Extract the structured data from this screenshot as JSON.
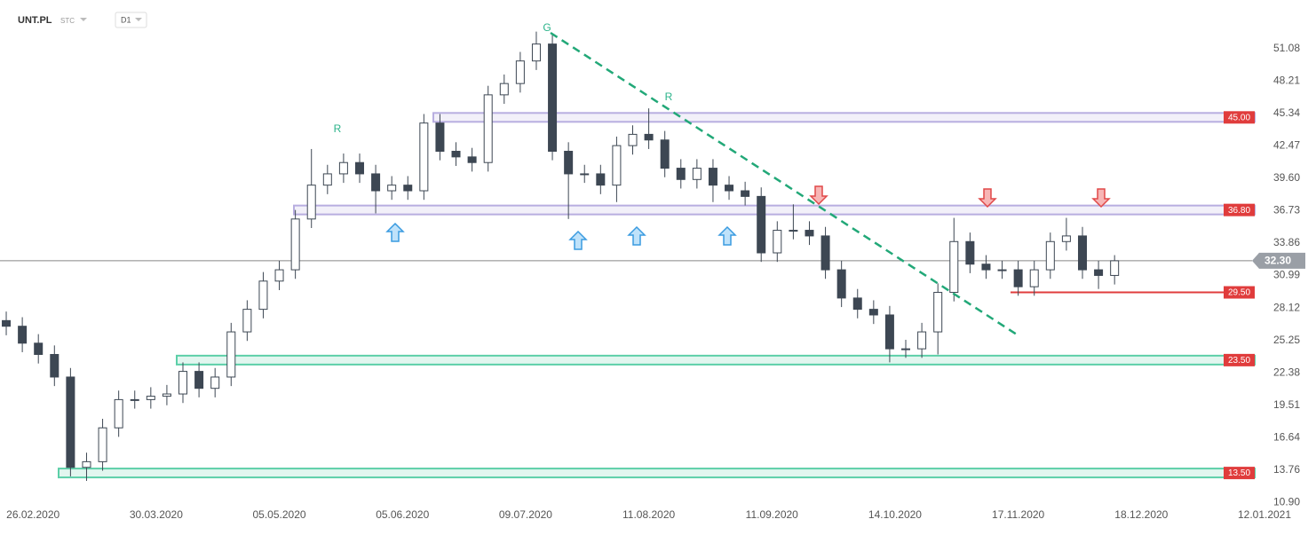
{
  "chart_data": {
    "type": "candlestick",
    "symbol": "UNT.PL",
    "source": "STC",
    "interval": "D1",
    "x": [
      0,
      3,
      6,
      9,
      12,
      15,
      18,
      21,
      24,
      27,
      30,
      33,
      36,
      39,
      42,
      45,
      48,
      51,
      54,
      57,
      60,
      63,
      66,
      69,
      72,
      75,
      78,
      81,
      84,
      87,
      90,
      93,
      96,
      99,
      102,
      105,
      108,
      111,
      114,
      117,
      120,
      123,
      126,
      129,
      132,
      135,
      138,
      141,
      144,
      147,
      150,
      153,
      156,
      159,
      162,
      165,
      168,
      171,
      174,
      177,
      180,
      183,
      186,
      189,
      192,
      195,
      198,
      201,
      204,
      207
    ],
    "open": [
      27,
      26.5,
      25,
      24,
      22,
      14,
      14.5,
      17.5,
      20,
      20,
      20.3,
      20.5,
      22.5,
      21,
      22,
      26,
      28,
      30.5,
      31.5,
      36,
      39,
      40,
      41,
      40,
      38.5,
      39,
      38.5,
      44.5,
      42,
      41.5,
      41,
      47,
      48,
      50,
      51.5,
      42,
      40,
      40,
      39,
      42.5,
      43.5,
      43,
      40.5,
      39.5,
      40.5,
      39,
      38.5,
      38,
      33,
      35,
      35,
      34.5,
      31.5,
      29,
      28,
      27.5,
      24.5,
      24.5,
      26,
      29.5,
      34,
      32,
      31.5,
      31.5,
      30,
      31.5,
      34,
      34.5,
      31.5,
      31
    ],
    "high": [
      27.8,
      27.3,
      25.8,
      24.8,
      22.8,
      15.3,
      18.3,
      20.8,
      20.8,
      21.1,
      21.3,
      23.3,
      23.3,
      22.8,
      26.8,
      28.8,
      31.3,
      32.3,
      36.8,
      42.2,
      40.8,
      41.8,
      41.8,
      40.8,
      39.8,
      39.8,
      45.3,
      45.3,
      42.8,
      42.3,
      47.8,
      48.8,
      50.8,
      52.6,
      52.3,
      42.8,
      40.8,
      40.8,
      43.3,
      44.3,
      45.8,
      43.8,
      41.3,
      41.3,
      41.3,
      39.8,
      39.3,
      38.8,
      35.8,
      37.3,
      35.8,
      35.3,
      32.3,
      29.8,
      28.8,
      28.3,
      25.3,
      26.8,
      30.3,
      36.1,
      34.8,
      32.8,
      32.3,
      32.3,
      32.3,
      34.8,
      36.1,
      35.3,
      32.3,
      32.8
    ],
    "low": [
      25.7,
      24.2,
      23.2,
      21.2,
      13.2,
      12.8,
      13.7,
      16.7,
      19.2,
      19.2,
      19.5,
      19.7,
      20.2,
      20.2,
      21.2,
      25.2,
      27.2,
      29.7,
      30.7,
      35.2,
      38.2,
      39.2,
      39.2,
      36.5,
      37.7,
      37.7,
      37.7,
      41.2,
      40.7,
      40.2,
      40.2,
      46.2,
      47.2,
      49.2,
      41.2,
      36,
      39.2,
      38.2,
      37.5,
      41.7,
      42.2,
      39.7,
      38.7,
      38.7,
      37.5,
      37.7,
      37.2,
      32.2,
      32.2,
      34.2,
      33.7,
      30.7,
      28.2,
      27.2,
      26.7,
      23.3,
      23.7,
      23.7,
      24,
      28.7,
      31.2,
      30.7,
      30.7,
      29.2,
      29.2,
      30.7,
      33.2,
      30.7,
      29.8,
      30.2
    ],
    "close": [
      26.5,
      25,
      24,
      22,
      14,
      14.5,
      17.5,
      20,
      20,
      20.3,
      20.5,
      22.5,
      21,
      22,
      26,
      28,
      30.5,
      31.5,
      36,
      39,
      40,
      41,
      40,
      38.5,
      39,
      38.5,
      44.5,
      42,
      41.5,
      41,
      47,
      48,
      50,
      51.5,
      42,
      40,
      40,
      39,
      42.5,
      43.5,
      43,
      40.5,
      39.5,
      40.5,
      39,
      38.5,
      38,
      33,
      35,
      35,
      34.5,
      31.5,
      29,
      28,
      27.5,
      24.5,
      24.5,
      26,
      29.5,
      34,
      32,
      31.5,
      31.5,
      30,
      31.5,
      34,
      34.5,
      31.5,
      31,
      32.3
    ],
    "up_color": "#ffffff",
    "down_color": "#3d4753",
    "ylim": [
      10.6,
      55.4
    ],
    "yticks": [
      {
        "value": 10.9,
        "label": "10.90"
      },
      13.76,
      16.64,
      19.51,
      22.38,
      25.25,
      28.12,
      30.99,
      33.86,
      36.73,
      {
        "value": 39.6,
        "label": "39.60"
      },
      42.47,
      45.34,
      48.21,
      51.08
    ],
    "xlim": [
      -1,
      235
    ],
    "xticks": [
      {
        "value": 5,
        "label": "26.02.2020"
      },
      {
        "value": 28,
        "label": "30.03.2020"
      },
      {
        "value": 51,
        "label": "05.05.2020"
      },
      {
        "value": 74,
        "label": "05.06.2020"
      },
      {
        "value": 97,
        "label": "09.07.2020"
      },
      {
        "value": 120,
        "label": "11.08.2020"
      },
      {
        "value": 143,
        "label": "11.09.2020"
      },
      {
        "value": 166,
        "label": "14.10.2020"
      },
      {
        "value": 189,
        "label": "17.11.2020"
      },
      {
        "value": 212,
        "label": "18.12.2020"
      },
      {
        "value": 235,
        "label": "12.01.2021"
      }
    ],
    "last_price": {
      "value": 32.3,
      "label": "32.30"
    },
    "levels": [
      {
        "value": 45,
        "label": "45.00",
        "style": "zone",
        "color": "#b8aee0"
      },
      {
        "value": 36.8,
        "label": "36.80",
        "style": "zone",
        "color": "#b8aee0"
      },
      {
        "value": 23.5,
        "label": "23.50",
        "style": "zone",
        "color": "#5ccfa8"
      },
      {
        "value": 13.5,
        "label": "13.50",
        "style": "zone",
        "color": "#5ccfa8"
      },
      {
        "value": 29.5,
        "label": "29.50",
        "style": "line",
        "color": "#e03c3c"
      }
    ],
    "annotations": [
      "G",
      "R",
      "R"
    ]
  }
}
